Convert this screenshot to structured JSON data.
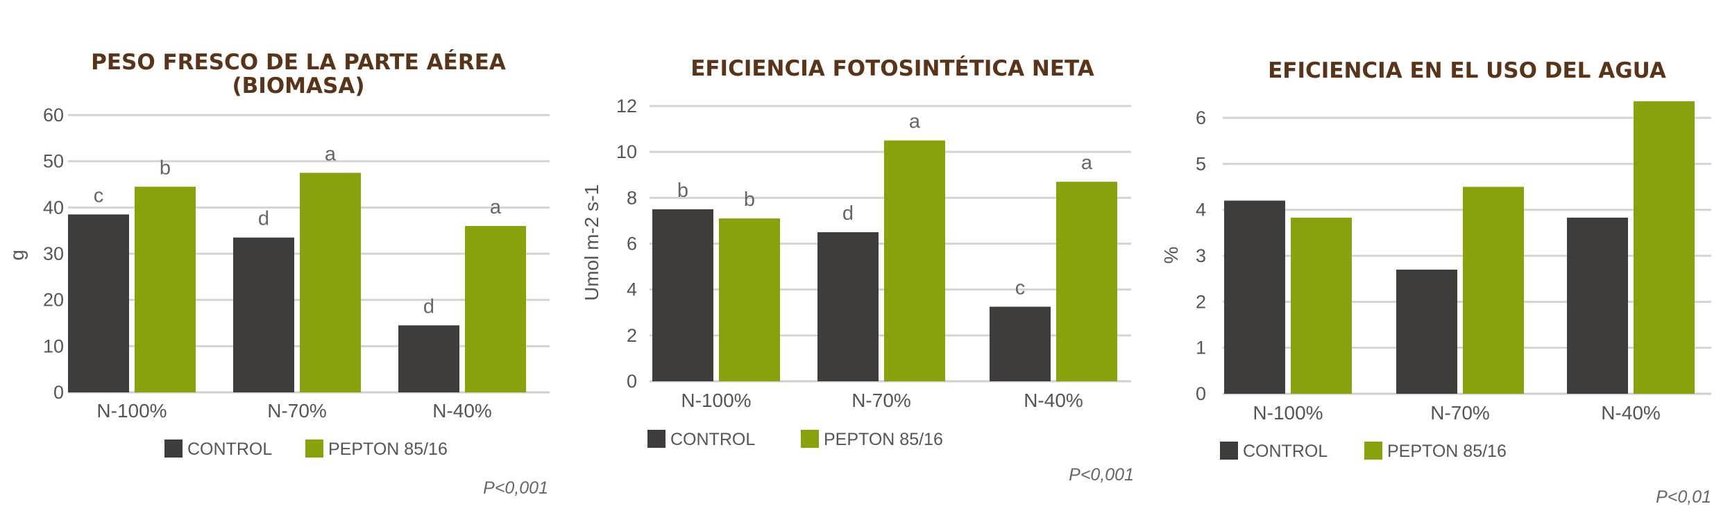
{
  "colors": {
    "control": "#3f3d3c",
    "pepton": "#86a30e",
    "title": "#5a3418"
  },
  "legend": {
    "control_label": "CONTROL",
    "pepton_label": "PEPTON 85/16"
  },
  "chart_data": [
    {
      "type": "bar",
      "title_lines": [
        "PESO FRESCO DE LA PARTE AÉREA",
        "(BIOMASA)"
      ],
      "ylabel": "g",
      "ylim": [
        0,
        60
      ],
      "yticks": [
        "0",
        "10",
        "20",
        "30",
        "40",
        "50",
        "60"
      ],
      "categories": [
        "N-100%",
        "N-70%",
        "N-40%"
      ],
      "series": [
        {
          "name": "CONTROL",
          "values": [
            38.5,
            33.5,
            14.5
          ],
          "letters": [
            "c",
            "d",
            "d"
          ]
        },
        {
          "name": "PEPTON 85/16",
          "values": [
            44.5,
            47.5,
            36
          ],
          "letters": [
            "b",
            "a",
            "a"
          ]
        }
      ],
      "pvalue": "P<0,001"
    },
    {
      "type": "bar",
      "title_lines": [
        "EFICIENCIA FOTOSINTÉTICA NETA"
      ],
      "ylabel": "Umol  m-2 s-1",
      "ylim": [
        0,
        12
      ],
      "yticks": [
        "0",
        "2",
        "4",
        "6",
        "8",
        "10",
        "12"
      ],
      "categories": [
        "N-100%",
        "N-70%",
        "N-40%"
      ],
      "series": [
        {
          "name": "CONTROL",
          "values": [
            7.5,
            6.5,
            3.25
          ],
          "letters": [
            "b",
            "d",
            "c"
          ]
        },
        {
          "name": "PEPTON 85/16",
          "values": [
            7.1,
            10.5,
            8.7
          ],
          "letters": [
            "b",
            "a",
            "a"
          ]
        }
      ],
      "pvalue": "P<0,001"
    },
    {
      "type": "bar",
      "title_lines": [
        "EFICIENCIA EN EL USO DEL AGUA"
      ],
      "ylabel": "%",
      "ylim": [
        0,
        6
      ],
      "yticks": [
        "0",
        "1",
        "2",
        "3",
        "4",
        "5",
        "6"
      ],
      "categories": [
        "N-100%",
        "N-70%",
        "N-40%"
      ],
      "series": [
        {
          "name": "CONTROL",
          "values": [
            4.2,
            2.7,
            3.83
          ],
          "letters": [
            "",
            "",
            ""
          ]
        },
        {
          "name": "PEPTON 85/16",
          "values": [
            3.83,
            4.5,
            6.36
          ],
          "letters": [
            "",
            "",
            ""
          ]
        }
      ],
      "pvalue": "P<0,01"
    }
  ]
}
